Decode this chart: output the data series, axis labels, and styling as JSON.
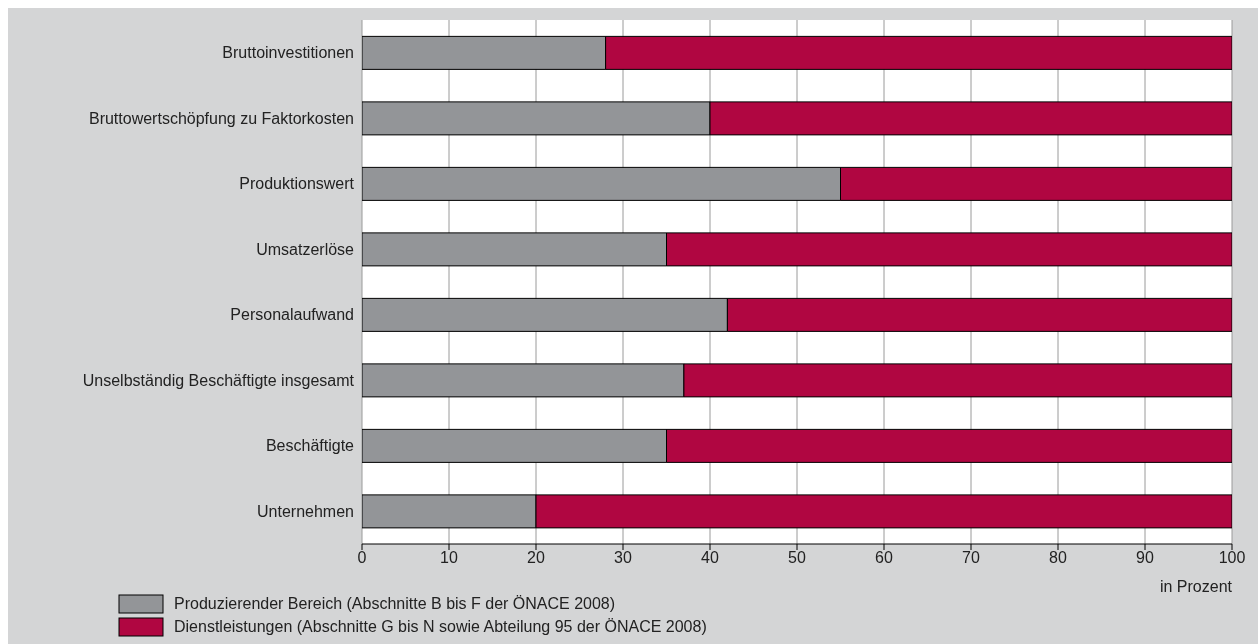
{
  "chart_data": {
    "type": "bar",
    "orientation": "horizontal",
    "stacked": true,
    "categories": [
      "Bruttoinvestitionen",
      "Bruttowertschöpfung zu Faktorkosten",
      "Produktionswert",
      "Umsatzerlöse",
      "Personalaufwand",
      "Unselbständig Beschäftigte insgesamt",
      "Beschäftigte",
      "Unternehmen"
    ],
    "series": [
      {
        "name": "Produzierender Bereich (Abschnitte B bis F der ÖNACE 2008)",
        "color": "#939598",
        "values": [
          28,
          40,
          55,
          35,
          42,
          37,
          35,
          20
        ]
      },
      {
        "name": "Dienstleistungen (Abschnitte G bis N sowie Abteilung 95 der ÖNACE 2008)",
        "color": "#b00641",
        "values": [
          72,
          60,
          45,
          65,
          58,
          63,
          65,
          80
        ]
      }
    ],
    "xlabel": "in Prozent",
    "xlim": [
      0,
      100
    ],
    "xticks": [
      0,
      10,
      20,
      30,
      40,
      50,
      60,
      70,
      80,
      90,
      100
    ],
    "grid": "x",
    "legend": "bottom left"
  }
}
